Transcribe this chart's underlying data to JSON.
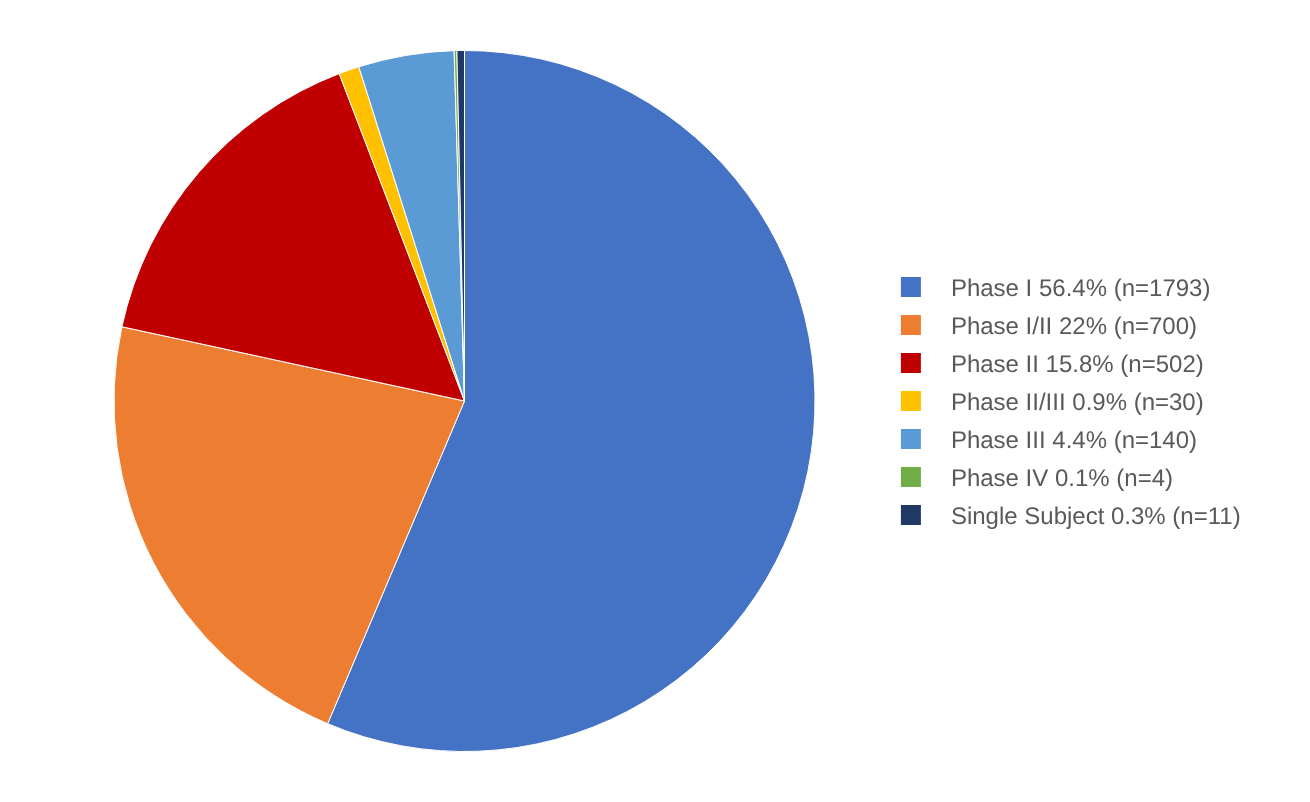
{
  "chart_data": {
    "type": "pie",
    "categories": [
      "Phase I 56.4% (n=1793)",
      "Phase I/II 22% (n=700)",
      "Phase II 15.8% (n=502)",
      "Phase II/III 0.9% (n=30)",
      "Phase III 4.4% (n=140)",
      "Phase IV 0.1% (n=4)",
      "Single Subject 0.3% (n=11)"
    ],
    "values": [
      1793,
      700,
      502,
      30,
      140,
      4,
      11
    ],
    "colors": [
      "#4472c4",
      "#ed7d31",
      "#c00000",
      "#ffc000",
      "#5b9bd5",
      "#70ad47",
      "#203864"
    ],
    "legend": "right"
  }
}
